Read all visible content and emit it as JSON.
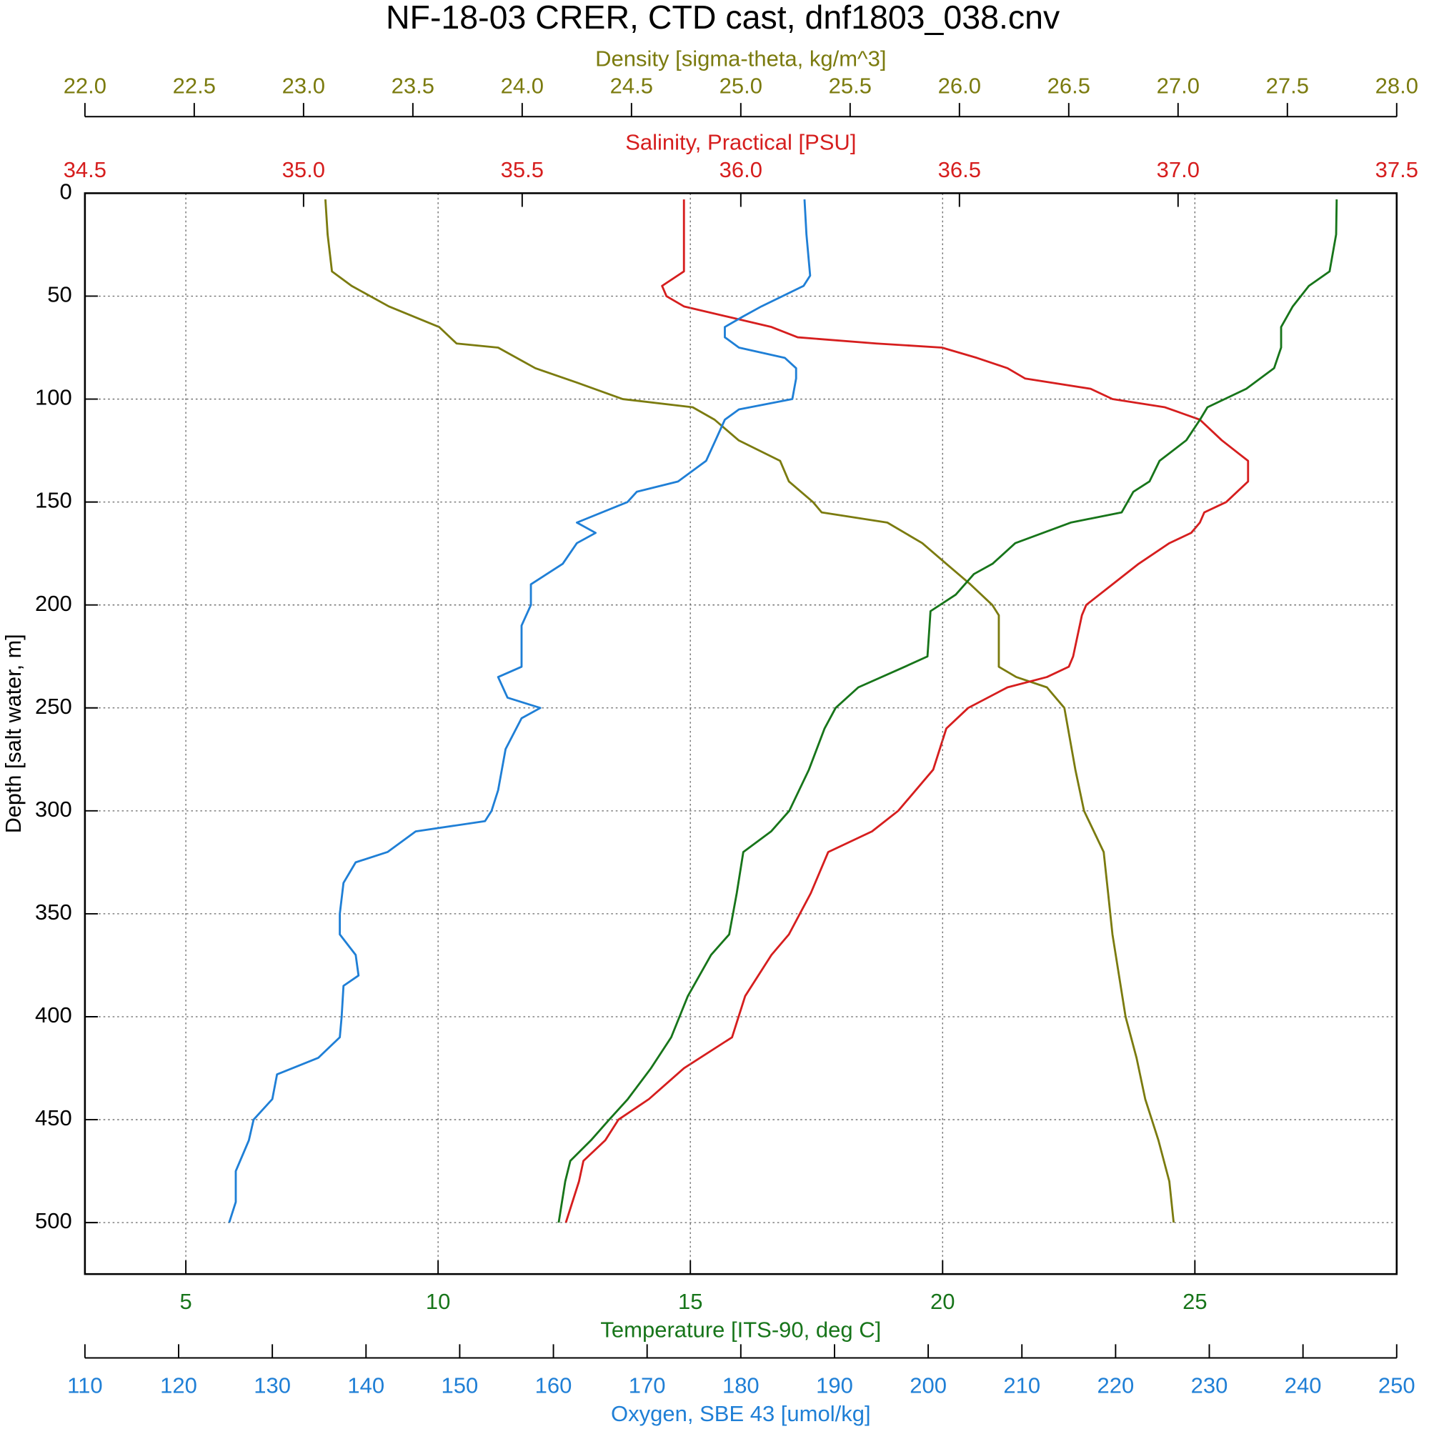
{
  "chart_data": {
    "type": "profile",
    "title": "NF-18-03 CRER, CTD cast, dnf1803_038.cnv",
    "ylabel": "Depth [salt water, m]",
    "ylim": [
      0,
      525
    ],
    "y_reversed": true,
    "yticks": [
      0,
      50,
      100,
      150,
      200,
      250,
      300,
      350,
      400,
      450,
      500
    ],
    "grid": true,
    "series": [
      {
        "xlabel": "Density [sigma-theta, kg/m^3]",
        "color": "#7b7b0f",
        "axis_position": "top",
        "axis_order": 2,
        "xlim": [
          22,
          28
        ],
        "xticks": [
          {
            "value": 22,
            "label": "22.0"
          },
          22.5,
          {
            "value": 23,
            "label": "23.0"
          },
          23.5,
          {
            "value": 24,
            "label": "24.0"
          },
          24.5,
          {
            "value": 25,
            "label": "25.0"
          },
          25.5,
          {
            "value": 26,
            "label": "26.0"
          },
          26.5,
          {
            "value": 27,
            "label": "27.0"
          },
          27.5,
          {
            "value": 28,
            "label": "28.0"
          }
        ],
        "depth": [
          3,
          20,
          38,
          45,
          55,
          65,
          73,
          75,
          85,
          92,
          100,
          104,
          110,
          120,
          130,
          140,
          150,
          155,
          160,
          170,
          180,
          190,
          200,
          205,
          230,
          235,
          240,
          250,
          280,
          300,
          320,
          340,
          360,
          380,
          400,
          420,
          440,
          460,
          480,
          500
        ],
        "values": [
          23.1,
          23.11,
          23.13,
          23.22,
          23.39,
          23.62,
          23.7,
          23.89,
          24.06,
          24.25,
          24.46,
          24.78,
          24.88,
          24.99,
          25.18,
          25.22,
          25.33,
          25.37,
          25.67,
          25.83,
          25.94,
          26.05,
          26.15,
          26.18,
          26.18,
          26.26,
          26.4,
          26.48,
          26.53,
          26.57,
          26.66,
          26.68,
          26.7,
          26.73,
          26.76,
          26.81,
          26.85,
          26.91,
          26.96,
          26.98
        ]
      },
      {
        "xlabel": "Salinity, Practical [PSU]",
        "color": "#d61e1e",
        "axis_position": "top",
        "axis_order": 1,
        "xlim": [
          34.5,
          37.5
        ],
        "xticks": [
          34.5,
          {
            "value": 35,
            "label": "35.0"
          },
          35.5,
          {
            "value": 36,
            "label": "36.0"
          },
          36.5,
          {
            "value": 37,
            "label": "37.0"
          },
          37.5
        ],
        "depth": [
          3,
          20,
          38,
          45,
          50,
          55,
          60,
          65,
          70,
          73,
          75,
          80,
          85,
          90,
          95,
          100,
          104,
          110,
          120,
          130,
          140,
          150,
          155,
          160,
          165,
          170,
          180,
          190,
          200,
          205,
          225,
          230,
          235,
          240,
          250,
          260,
          280,
          300,
          310,
          320,
          340,
          360,
          370,
          390,
          410,
          425,
          440,
          450,
          460,
          470,
          480,
          500
        ],
        "values": [
          35.87,
          35.87,
          35.87,
          35.82,
          35.83,
          35.87,
          35.97,
          36.07,
          36.13,
          36.31,
          36.46,
          36.54,
          36.61,
          36.65,
          36.8,
          36.85,
          36.97,
          37.05,
          37.1,
          37.16,
          37.16,
          37.11,
          37.06,
          37.05,
          37.03,
          36.98,
          36.91,
          36.85,
          36.79,
          36.78,
          36.76,
          36.75,
          36.7,
          36.61,
          36.52,
          36.47,
          36.44,
          36.36,
          36.3,
          36.2,
          36.16,
          36.11,
          36.07,
          36.01,
          35.98,
          35.87,
          35.79,
          35.72,
          35.69,
          35.64,
          35.63,
          35.6
        ]
      },
      {
        "xlabel": "Temperature [ITS-90, deg C]",
        "color": "#17751a",
        "axis_position": "bottom",
        "axis_order": 1,
        "grid": true,
        "xlim": [
          3,
          29
        ],
        "xticks": [
          5,
          10,
          15,
          20,
          25
        ],
        "depth": [
          3,
          20,
          38,
          45,
          55,
          65,
          75,
          85,
          95,
          104,
          110,
          120,
          130,
          140,
          145,
          155,
          160,
          170,
          180,
          185,
          195,
          203,
          225,
          230,
          240,
          250,
          260,
          280,
          300,
          310,
          320,
          340,
          360,
          370,
          390,
          410,
          425,
          440,
          450,
          460,
          470,
          480,
          500
        ],
        "values": [
          27.81,
          27.8,
          27.67,
          27.26,
          26.94,
          26.71,
          26.71,
          26.57,
          26.02,
          25.25,
          25.1,
          24.83,
          24.3,
          24.1,
          23.78,
          23.55,
          22.54,
          21.44,
          20.99,
          20.62,
          20.26,
          19.76,
          19.7,
          19.25,
          18.33,
          17.88,
          17.66,
          17.35,
          16.96,
          16.6,
          16.05,
          15.92,
          15.77,
          15.41,
          14.95,
          14.62,
          14.22,
          13.76,
          13.39,
          13.03,
          12.62,
          12.52,
          12.39
        ]
      },
      {
        "xlabel": "Oxygen, SBE 43 [umol/kg]",
        "color": "#1f7fd6",
        "axis_position": "bottom",
        "axis_order": 2,
        "xlim": [
          110,
          250
        ],
        "xticks": [
          110,
          120,
          130,
          140,
          150,
          160,
          170,
          180,
          190,
          200,
          210,
          220,
          230,
          240,
          250
        ],
        "depth": [
          3,
          20,
          40,
          45,
          55,
          60,
          65,
          70,
          75,
          80,
          85,
          90,
          100,
          105,
          110,
          120,
          130,
          140,
          145,
          150,
          160,
          165,
          170,
          180,
          190,
          200,
          210,
          230,
          235,
          245,
          250,
          255,
          270,
          290,
          300,
          305,
          310,
          320,
          325,
          335,
          350,
          360,
          370,
          380,
          385,
          400,
          410,
          420,
          428,
          440,
          450,
          460,
          475,
          490,
          500
        ],
        "values": [
          186.8,
          187.0,
          187.4,
          186.7,
          182.2,
          180.2,
          178.3,
          178.3,
          179.8,
          184.7,
          185.9,
          185.9,
          185.5,
          179.8,
          178.3,
          177.3,
          176.3,
          173.3,
          168.9,
          167.9,
          162.5,
          164.5,
          162.5,
          161.0,
          157.6,
          157.6,
          156.6,
          156.6,
          154.1,
          155.1,
          158.6,
          156.6,
          154.9,
          154.1,
          153.4,
          152.7,
          145.3,
          142.3,
          138.9,
          137.6,
          137.2,
          137.2,
          138.9,
          139.2,
          137.6,
          137.4,
          137.2,
          134.9,
          130.5,
          130.0,
          128.0,
          127.5,
          126.1,
          126.1,
          125.4
        ]
      }
    ]
  }
}
